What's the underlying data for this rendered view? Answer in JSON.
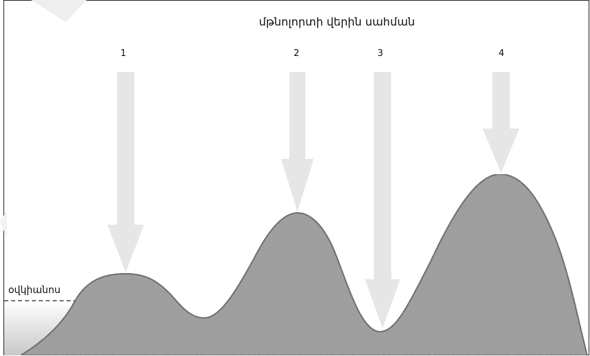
{
  "diagram": {
    "title": "մթնոլորտի վերին սահման",
    "ocean_label": "օվկիանոս",
    "arrows": [
      {
        "label": "1"
      },
      {
        "label": "2"
      },
      {
        "label": "3"
      },
      {
        "label": "4"
      }
    ],
    "colors": {
      "arrow": "#e6e6e6",
      "terrain": "#9c9c9c",
      "outline": "#1a1a1a",
      "frame": "#222222"
    }
  }
}
